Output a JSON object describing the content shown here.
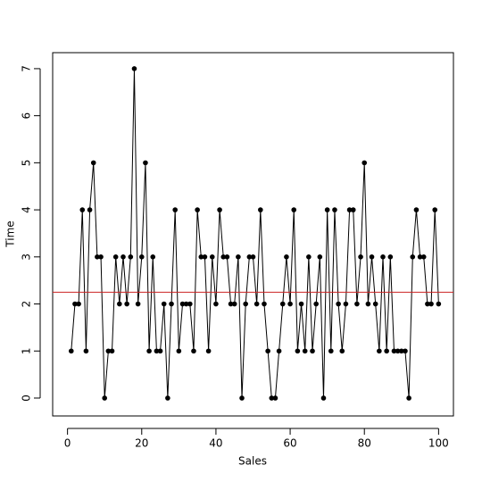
{
  "chart_data": {
    "type": "line",
    "xlabel": "Sales",
    "ylabel": "Time",
    "x": [
      1,
      2,
      3,
      4,
      5,
      6,
      7,
      8,
      9,
      10,
      11,
      12,
      13,
      14,
      15,
      16,
      17,
      18,
      19,
      20,
      21,
      22,
      23,
      24,
      25,
      26,
      27,
      28,
      29,
      30,
      31,
      32,
      33,
      34,
      35,
      36,
      37,
      38,
      39,
      40,
      41,
      42,
      43,
      44,
      45,
      46,
      47,
      48,
      49,
      50,
      51,
      52,
      53,
      54,
      55,
      56,
      57,
      58,
      59,
      60,
      61,
      62,
      63,
      64,
      65,
      66,
      67,
      68,
      69,
      70,
      71,
      72,
      73,
      74,
      75,
      76,
      77,
      78,
      79,
      80,
      81,
      82,
      83,
      84,
      85,
      86,
      87,
      88,
      89,
      90,
      91,
      92,
      93,
      94,
      95,
      96,
      97,
      98,
      99,
      100
    ],
    "values": [
      1,
      2,
      2,
      4,
      1,
      4,
      5,
      3,
      3,
      0,
      1,
      1,
      3,
      2,
      3,
      2,
      3,
      7,
      2,
      3,
      5,
      1,
      3,
      1,
      1,
      2,
      0,
      2,
      4,
      1,
      2,
      2,
      2,
      1,
      4,
      3,
      3,
      1,
      3,
      2,
      4,
      3,
      3,
      2,
      2,
      3,
      0,
      2,
      3,
      3,
      2,
      4,
      2,
      1,
      0,
      0,
      1,
      2,
      3,
      2,
      4,
      1,
      2,
      1,
      3,
      1,
      2,
      3,
      0,
      4,
      1,
      4,
      2,
      1,
      2,
      4,
      4,
      2,
      3,
      5,
      2,
      3,
      2,
      1,
      3,
      1,
      3,
      1,
      1,
      1,
      1,
      0,
      3,
      4,
      3,
      3,
      2,
      2,
      4,
      2
    ],
    "color": "#000000",
    "hline": 2.25,
    "hline_color": "#cc2222",
    "xlim": [
      -4,
      104
    ],
    "ylim": [
      -0.38,
      7.34
    ],
    "xticks": [
      0,
      20,
      40,
      60,
      80,
      100
    ],
    "yticks": [
      0,
      1,
      2,
      3,
      4,
      5,
      6,
      7
    ]
  }
}
